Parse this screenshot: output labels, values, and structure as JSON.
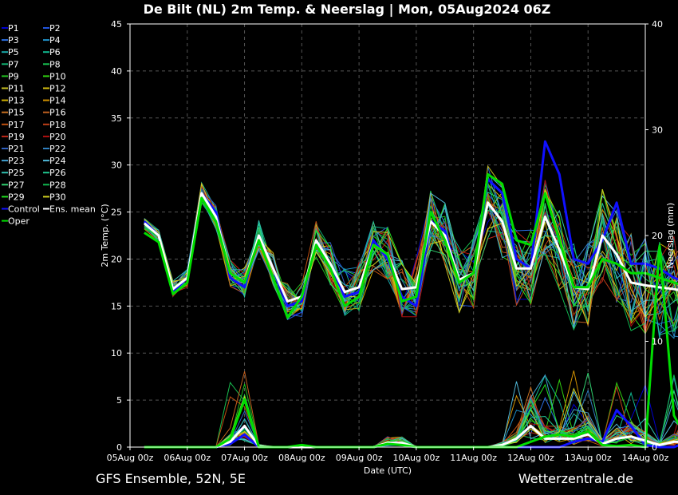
{
  "chart_data": {
    "type": "line",
    "title": "De Bilt  (NL)  2m Temp. & Neerslag | Mon, 05Aug2024 06Z",
    "xlabel": "Date (UTC)",
    "ylabel": "2m Temp. (°C)",
    "y2label": "Neerslag (mm)",
    "x_ticks": [
      "05Aug 00z",
      "06Aug 00z",
      "07Aug 00z",
      "08Aug 00z",
      "09Aug 00z",
      "10Aug 00z",
      "11Aug 00z",
      "12Aug 00z",
      "13Aug 00z",
      "14Aug 00z"
    ],
    "x_hours": [
      6,
      12,
      18,
      24,
      30,
      36,
      42,
      48,
      54,
      60,
      66,
      72,
      78,
      84,
      90,
      96,
      102,
      108,
      114,
      120,
      126,
      132,
      138,
      144,
      150,
      156,
      162,
      168,
      174,
      180,
      186,
      192,
      198,
      204,
      210,
      216,
      222,
      228,
      234,
      240
    ],
    "ylim": [
      0,
      45
    ],
    "y_ticks": [
      0,
      5,
      10,
      15,
      20,
      25,
      30,
      35,
      40,
      45
    ],
    "y2lim": [
      0,
      40
    ],
    "y2_ticks": [
      0,
      10,
      20,
      30,
      40
    ],
    "grid": true,
    "legend_position": "left",
    "series": [
      {
        "name": "Control",
        "color": "#1010ff",
        "kind": "temp",
        "values": [
          24,
          22.5,
          16.5,
          18,
          27,
          25,
          18,
          17,
          22.5,
          19,
          15,
          15.5,
          22,
          19.5,
          16,
          16.5,
          22,
          20,
          16,
          15,
          24,
          23,
          17.5,
          18.5,
          28.5,
          27,
          20,
          19,
          32.5,
          29,
          20,
          19.5,
          22,
          26,
          19.5,
          19.5,
          19,
          18,
          17.5,
          17
        ]
      },
      {
        "name": "Ens. mean",
        "color": "#ffffff",
        "kind": "temp",
        "values": [
          23.8,
          22.5,
          16.8,
          18,
          27,
          24.5,
          18.5,
          17.5,
          22.5,
          19,
          15.5,
          16,
          22,
          19.5,
          16.5,
          17,
          21.5,
          20.5,
          16.8,
          17,
          24,
          22.5,
          17.8,
          18.5,
          26,
          24,
          19,
          19,
          24.5,
          21,
          17,
          16.8,
          22.5,
          20.5,
          17.5,
          17.2,
          17,
          16.8,
          16.5,
          16.3
        ]
      },
      {
        "name": "Oper",
        "color": "#00dd00",
        "kind": "temp",
        "values": [
          22.8,
          21.8,
          16.3,
          17.5,
          26.5,
          24,
          18.5,
          17.5,
          22,
          18,
          13.8,
          16,
          21.5,
          19,
          15,
          16,
          21.5,
          20.5,
          15.5,
          16,
          25,
          22,
          17.5,
          18.5,
          29,
          28,
          22,
          21.5,
          27,
          22,
          17,
          17,
          20,
          19.5,
          18.5,
          18.5,
          18,
          17.5,
          17,
          17
        ]
      },
      {
        "name": "Control",
        "color": "#1010ff",
        "kind": "precip",
        "values": [
          0,
          0,
          0,
          0,
          0,
          0,
          0.3,
          1.2,
          0,
          0,
          0,
          0,
          0,
          0,
          0,
          0,
          0,
          0.3,
          0.2,
          0,
          0,
          0,
          0,
          0,
          0,
          0,
          0,
          0,
          0,
          0,
          0.5,
          0.8,
          0.5,
          3.5,
          2,
          0.2,
          0,
          0,
          0.5,
          0
        ]
      },
      {
        "name": "Ens. mean",
        "color": "#ffffff",
        "kind": "precip",
        "values": [
          0,
          0,
          0,
          0,
          0,
          0,
          0.5,
          2,
          0.1,
          0,
          0,
          0,
          0,
          0,
          0,
          0,
          0,
          0.4,
          0.4,
          0,
          0,
          0,
          0,
          0,
          0,
          0.2,
          0.8,
          2,
          0.8,
          0.8,
          0.8,
          1.2,
          0.3,
          0.8,
          1,
          0.6,
          0.2,
          0.5,
          0.5,
          0.3
        ]
      },
      {
        "name": "Oper",
        "color": "#00dd00",
        "kind": "precip",
        "values": [
          0,
          0,
          0,
          0,
          0,
          0,
          0.8,
          4.5,
          0,
          0,
          0,
          0.2,
          0,
          0,
          0,
          0,
          0,
          0.3,
          0.2,
          0,
          0,
          0,
          0,
          0,
          0,
          0,
          0,
          0.5,
          1,
          1.2,
          1,
          1.5,
          0.2,
          0.1,
          0.2,
          0,
          19,
          3,
          0.5,
          0
        ]
      }
    ],
    "legend": [
      {
        "name": "P1",
        "color": "#0000cc"
      },
      {
        "name": "P2",
        "color": "#2255dd"
      },
      {
        "name": "P3",
        "color": "#2a6ee0"
      },
      {
        "name": "P4",
        "color": "#1f90c8"
      },
      {
        "name": "P5",
        "color": "#18a8a8"
      },
      {
        "name": "P6",
        "color": "#10b890"
      },
      {
        "name": "P7",
        "color": "#10b070"
      },
      {
        "name": "P8",
        "color": "#18c050"
      },
      {
        "name": "P9",
        "color": "#20c020"
      },
      {
        "name": "P10",
        "color": "#30d010"
      },
      {
        "name": "P11",
        "color": "#c8c020"
      },
      {
        "name": "P12",
        "color": "#d8c010"
      },
      {
        "name": "P13",
        "color": "#d0b000"
      },
      {
        "name": "P14",
        "color": "#d09000"
      },
      {
        "name": "P15",
        "color": "#c87020"
      },
      {
        "name": "P16",
        "color": "#c06020"
      },
      {
        "name": "P17",
        "color": "#c05010"
      },
      {
        "name": "P18",
        "color": "#c04018"
      },
      {
        "name": "P19",
        "color": "#c02818"
      },
      {
        "name": "P20",
        "color": "#b01010"
      },
      {
        "name": "P21",
        "color": "#3060c0"
      },
      {
        "name": "P22",
        "color": "#3080c0"
      },
      {
        "name": "P23",
        "color": "#40a0d0"
      },
      {
        "name": "P24",
        "color": "#50b8d8"
      },
      {
        "name": "P25",
        "color": "#30c0b0"
      },
      {
        "name": "P26",
        "color": "#20c890"
      },
      {
        "name": "P27",
        "color": "#30d070"
      },
      {
        "name": "P28",
        "color": "#10b850"
      },
      {
        "name": "P29",
        "color": "#20e020"
      },
      {
        "name": "P30",
        "color": "#d0d020"
      },
      {
        "name": "Control",
        "color": "#1010ff"
      },
      {
        "name": "Ens. mean",
        "color": "#ffffff"
      },
      {
        "name": "Oper",
        "color": "#00dd00"
      }
    ]
  },
  "footer": {
    "left": "GFS Ensemble, 52N, 5E",
    "right": "Wetterzentrale.de"
  }
}
